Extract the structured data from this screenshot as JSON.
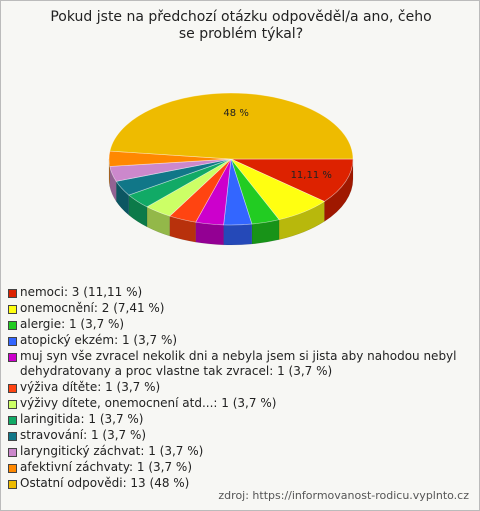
{
  "chart_data": {
    "type": "pie",
    "title": "Pokud jste na předchozí otázku odpověděl/a ano, čeho se problém týkal?",
    "source": "zdroj: https://informovanost-rodicu.vyplnto.cz",
    "categories": [
      "nemoci: 3 (11,11 %)",
      "onemocnění: 2 (7,41 %)",
      "alergie: 1 (3,7 %)",
      "atopický ekzém: 1 (3,7 %)",
      "muj syn vše zvracel nekolik dni a nebyla jsem si jista aby nahodou nebyl dehydratovany a proc vlastne tak zvracel: 1 (3,7 %)",
      "výživa dítěte: 1 (3,7 %)",
      "výživy dítete, onemocnení atd...: 1 (3,7 %)",
      "laringitida: 1 (3,7 %)",
      "stravování: 1 (3,7 %)",
      "laryngitický záchvat: 1 (3,7 %)",
      "afektivní záchvaty: 1 (3,7 %)",
      "Ostatní odpovědi: 13 (48 %)"
    ],
    "values": [
      11.11,
      7.41,
      3.7,
      3.7,
      3.7,
      3.7,
      3.7,
      3.7,
      3.7,
      3.7,
      3.7,
      48
    ],
    "value_labels": [
      "11,11 %",
      null,
      null,
      null,
      null,
      null,
      null,
      null,
      null,
      null,
      null,
      "48 %"
    ],
    "colors": [
      "#dd2200",
      "#ffff11",
      "#22cc22",
      "#3366ff",
      "#cc00cc",
      "#ff4411",
      "#ccff66",
      "#11aa66",
      "#117788",
      "#cc88cc",
      "#ff8800",
      "#eebb00"
    ]
  }
}
